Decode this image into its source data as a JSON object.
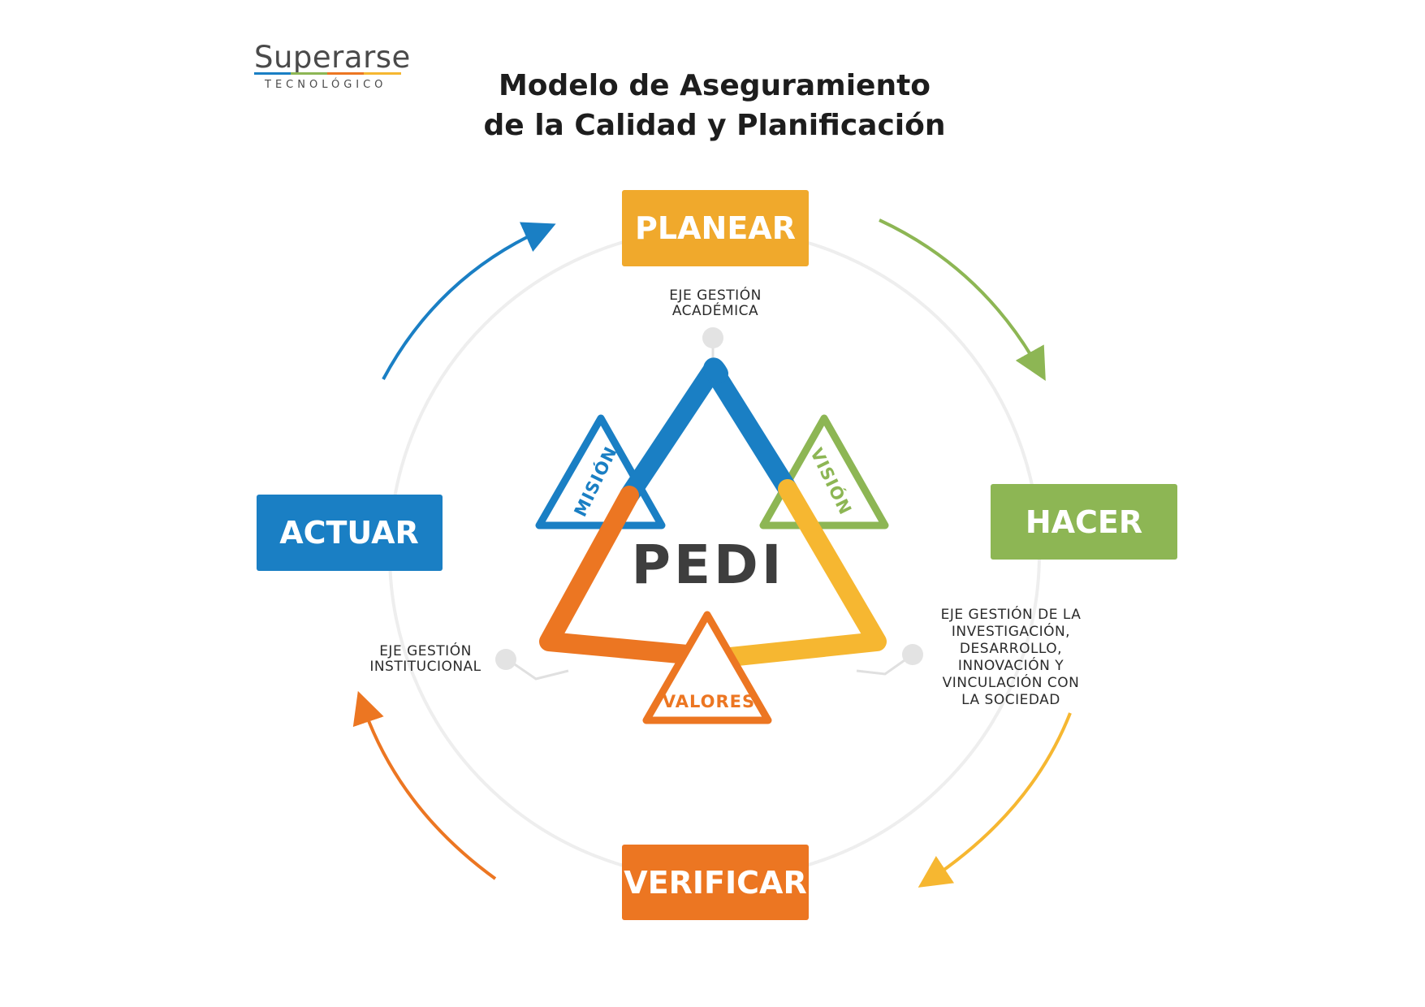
{
  "logo": {
    "main": "Superarse",
    "sub": "TECNOLÓGICO"
  },
  "title": {
    "line1": "Modelo de Aseguramiento",
    "line2": "de la Calidad y Planificación"
  },
  "phases": {
    "planear": "PLANEAR",
    "hacer": "HACER",
    "verificar": "VERIFICAR",
    "actuar": "ACTUAR"
  },
  "center": "PEDI",
  "triangles": {
    "mision": "MISIÓN",
    "vision": "VISIÓN",
    "valores": "VALORES"
  },
  "axes": {
    "academica": [
      "EJE GESTIÓN",
      "ACADÉMICA"
    ],
    "institucional": [
      "EJE GESTIÓN",
      "INSTITUCIONAL"
    ],
    "investigacion": [
      "EJE GESTIÓN DE LA",
      "INVESTIGACIÓN,",
      "DESARROLLO,",
      "INNOVACIÓN Y",
      "VINCULACIÓN CON",
      "LA SOCIEDAD"
    ]
  },
  "colors": {
    "planear": "#f0a92c",
    "hacer": "#8db654",
    "verificar": "#ec7622",
    "actuar": "#1a7fc4",
    "blue": "#1a7fc4",
    "green": "#8db654",
    "orange": "#ec7622",
    "yellow": "#f6b731",
    "ring": "#ebebeb"
  }
}
